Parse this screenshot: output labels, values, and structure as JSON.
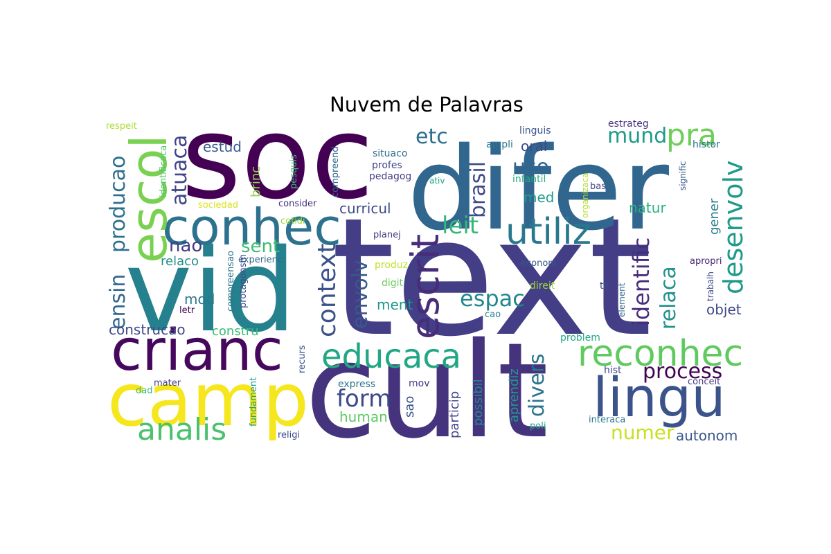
{
  "chart_data": {
    "type": "wordcloud",
    "title": "Nuvem de Palavras",
    "colormap": [
      "#440154",
      "#482777",
      "#3f4a8a",
      "#31678e",
      "#26838f",
      "#1f9d8a",
      "#6cce5a",
      "#b6de2b",
      "#fee825"
    ],
    "words": [
      {
        "text": "text",
        "weight": 100,
        "color": "#433e85",
        "orientation": "horizontal"
      },
      {
        "text": "cult",
        "weight": 83,
        "color": "#46337e",
        "orientation": "horizontal"
      },
      {
        "text": "difer",
        "weight": 74,
        "color": "#31678e",
        "orientation": "horizontal"
      },
      {
        "text": "soc",
        "weight": 72,
        "color": "#440154",
        "orientation": "horizontal"
      },
      {
        "text": "vid",
        "weight": 69,
        "color": "#26818e",
        "orientation": "horizontal"
      },
      {
        "text": "camp",
        "weight": 53,
        "color": "#f5e61e",
        "orientation": "horizontal"
      },
      {
        "text": "crianc",
        "weight": 41,
        "color": "#46085c",
        "orientation": "horizontal"
      },
      {
        "text": "lingu",
        "weight": 40,
        "color": "#3b528b",
        "orientation": "horizontal"
      },
      {
        "text": "conhec",
        "weight": 35,
        "color": "#2c728e",
        "orientation": "horizontal"
      },
      {
        "text": "escol",
        "weight": 35,
        "color": "#7ad151",
        "orientation": "vertical"
      },
      {
        "text": "utiliz",
        "weight": 28,
        "color": "#2a788e",
        "orientation": "horizontal"
      },
      {
        "text": "reconhec",
        "weight": 28,
        "color": "#60ca60",
        "orientation": "horizontal"
      },
      {
        "text": "escrit",
        "weight": 28,
        "color": "#472c7a",
        "orientation": "vertical"
      },
      {
        "text": "educaca",
        "weight": 24,
        "color": "#22a785",
        "orientation": "horizontal"
      },
      {
        "text": "analis",
        "weight": 24,
        "color": "#4ac16d",
        "orientation": "horizontal"
      },
      {
        "text": "pra",
        "weight": 24,
        "color": "#6ece58",
        "orientation": "horizontal"
      },
      {
        "text": "desenvolv",
        "weight": 19,
        "color": "#1f9a8a",
        "orientation": "vertical"
      },
      {
        "text": "context",
        "weight": 19,
        "color": "#3b528b",
        "orientation": "vertical"
      },
      {
        "text": "form",
        "weight": 18,
        "color": "#3e4989",
        "orientation": "horizontal"
      },
      {
        "text": "leit",
        "weight": 18,
        "color": "#35b779",
        "orientation": "horizontal"
      },
      {
        "text": "process",
        "weight": 18,
        "color": "#440154",
        "orientation": "horizontal"
      },
      {
        "text": "espac",
        "weight": 18,
        "color": "#23888e",
        "orientation": "horizontal"
      },
      {
        "text": "relaca",
        "weight": 18,
        "color": "#21918c",
        "orientation": "vertical"
      },
      {
        "text": "identific",
        "weight": 18,
        "color": "#472d7b",
        "orientation": "vertical"
      },
      {
        "text": "ensin",
        "weight": 18,
        "color": "#31688e",
        "orientation": "vertical"
      },
      {
        "text": "producao",
        "weight": 18,
        "color": "#2d708e",
        "orientation": "vertical"
      },
      {
        "text": "atuaca",
        "weight": 18,
        "color": "#414487",
        "orientation": "vertical"
      },
      {
        "text": "envolv",
        "weight": 17,
        "color": "#38598c",
        "orientation": "vertical"
      },
      {
        "text": "brasil",
        "weight": 17,
        "color": "#3e4a89",
        "orientation": "vertical"
      },
      {
        "text": "divers",
        "weight": 17,
        "color": "#2c738e",
        "orientation": "vertical"
      },
      {
        "text": "mund",
        "weight": 17,
        "color": "#1e9b8a",
        "orientation": "horizontal"
      },
      {
        "text": "etc",
        "weight": 17,
        "color": "#2d708e",
        "orientation": "horizontal"
      },
      {
        "text": "uso",
        "weight": 17,
        "color": "#31668e",
        "orientation": "horizontal"
      },
      {
        "text": "numer",
        "weight": 15,
        "color": "#c8e020",
        "orientation": "horizontal"
      },
      {
        "text": "sent",
        "weight": 15,
        "color": "#3fbc73",
        "orientation": "horizontal"
      },
      {
        "text": "nao",
        "weight": 15,
        "color": "#433e85",
        "orientation": "horizontal"
      },
      {
        "text": "construcao",
        "weight": 12,
        "color": "#3e4989",
        "orientation": "horizontal"
      },
      {
        "text": "curricul",
        "weight": 12,
        "color": "#3e4a89",
        "orientation": "horizontal"
      },
      {
        "text": "autonom",
        "weight": 12,
        "color": "#39568c",
        "orientation": "horizontal"
      },
      {
        "text": "ment",
        "weight": 12,
        "color": "#1f968b",
        "orientation": "horizontal"
      },
      {
        "text": "objet",
        "weight": 12,
        "color": "#404688",
        "orientation": "horizontal"
      },
      {
        "text": "human",
        "weight": 12,
        "color": "#5ec962",
        "orientation": "horizontal"
      },
      {
        "text": "estud",
        "weight": 12,
        "color": "#39568c",
        "orientation": "horizontal"
      },
      {
        "text": "natur",
        "weight": 12,
        "color": "#29af7f",
        "orientation": "horizontal"
      },
      {
        "text": "med",
        "weight": 12,
        "color": "#1f9e89",
        "orientation": "horizontal"
      },
      {
        "text": "oral",
        "weight": 12,
        "color": "#3e4a89",
        "orientation": "horizontal"
      },
      {
        "text": "mod",
        "weight": 11,
        "color": "#2a788e",
        "orientation": "horizontal"
      },
      {
        "text": "relaco",
        "weight": 11,
        "color": "#218f8d",
        "orientation": "horizontal"
      },
      {
        "text": "constru",
        "weight": 11,
        "color": "#3aba76",
        "orientation": "horizontal"
      },
      {
        "text": "brinc",
        "weight": 11,
        "color": "#8fd744",
        "orientation": "vertical"
      },
      {
        "text": "sao",
        "weight": 11,
        "color": "#3b528b",
        "orientation": "vertical"
      },
      {
        "text": "particip",
        "weight": 11,
        "color": "#414487",
        "orientation": "vertical"
      },
      {
        "text": "possibil",
        "weight": 11,
        "color": "#23898e",
        "orientation": "vertical"
      },
      {
        "text": "aprendiz",
        "weight": 11,
        "color": "#1f9a8a",
        "orientation": "vertical"
      },
      {
        "text": "gener",
        "weight": 11,
        "color": "#287c8e",
        "orientation": "vertical"
      },
      {
        "text": "linguis",
        "weight": 9,
        "color": "#3b528b",
        "orientation": "horizontal"
      },
      {
        "text": "estrateg",
        "weight": 9,
        "color": "#46327e",
        "orientation": "horizontal"
      },
      {
        "text": "histor",
        "weight": 9,
        "color": "#2c728e",
        "orientation": "horizontal"
      },
      {
        "text": "ampli",
        "weight": 9,
        "color": "#2a778e",
        "orientation": "horizontal"
      },
      {
        "text": "respeit",
        "weight": 8,
        "color": "#addc30",
        "orientation": "horizontal"
      },
      {
        "text": "identificaca",
        "weight": 8,
        "color": "#50c46a",
        "orientation": "vertical"
      },
      {
        "text": "pesquis",
        "weight": 8,
        "color": "#3dbc74",
        "orientation": "vertical"
      },
      {
        "text": "compreend",
        "weight": 8,
        "color": "#31688e",
        "orientation": "vertical"
      },
      {
        "text": "situaco",
        "weight": 8,
        "color": "#2d708e",
        "orientation": "horizontal"
      },
      {
        "text": "profes",
        "weight": 8,
        "color": "#3f4889",
        "orientation": "horizontal"
      },
      {
        "text": "pedagog",
        "weight": 8,
        "color": "#433e85",
        "orientation": "horizontal"
      },
      {
        "text": "infantil",
        "weight": 8,
        "color": "#26ad81",
        "orientation": "horizontal"
      },
      {
        "text": "ativ",
        "weight": 8,
        "color": "#1fa088",
        "orientation": "horizontal"
      },
      {
        "text": "bas",
        "weight": 8,
        "color": "#404588",
        "orientation": "horizontal"
      },
      {
        "text": "organizaca",
        "weight": 8,
        "color": "#b2dd2d",
        "orientation": "vertical"
      },
      {
        "text": "signific",
        "weight": 8,
        "color": "#375a8c",
        "orientation": "vertical"
      },
      {
        "text": "sociedad",
        "weight": 8,
        "color": "#d8e219",
        "orientation": "horizontal"
      },
      {
        "text": "consider",
        "weight": 8,
        "color": "#46307e",
        "orientation": "horizontal"
      },
      {
        "text": "cotidi",
        "weight": 8,
        "color": "#9dd93b",
        "orientation": "horizontal"
      },
      {
        "text": "planej",
        "weight": 8,
        "color": "#443a83",
        "orientation": "horizontal"
      },
      {
        "text": "experienc",
        "weight": 8,
        "color": "#31688e",
        "orientation": "horizontal"
      },
      {
        "text": "compreensao",
        "weight": 8,
        "color": "#2c738e",
        "orientation": "vertical"
      },
      {
        "text": "protagonsm",
        "weight": 8,
        "color": "#3e4989",
        "orientation": "vertical"
      },
      {
        "text": "produz",
        "weight": 8,
        "color": "#c0df25",
        "orientation": "horizontal"
      },
      {
        "text": "econom",
        "weight": 8,
        "color": "#39568c",
        "orientation": "horizontal"
      },
      {
        "text": "apropri",
        "weight": 8,
        "color": "#482575",
        "orientation": "horizontal"
      },
      {
        "text": "digit",
        "weight": 8,
        "color": "#6ccd5a",
        "orientation": "horizontal"
      },
      {
        "text": "direit",
        "weight": 8,
        "color": "#a2da37",
        "orientation": "horizontal"
      },
      {
        "text": "te",
        "weight": 8,
        "color": "#3e4989",
        "orientation": "horizontal"
      },
      {
        "text": "element",
        "weight": 8,
        "color": "#31688e",
        "orientation": "vertical"
      },
      {
        "text": "trabalh",
        "weight": 8,
        "color": "#3e4989",
        "orientation": "vertical"
      },
      {
        "text": "letr",
        "weight": 8,
        "color": "#440154",
        "orientation": "horizontal"
      },
      {
        "text": "cao",
        "weight": 8,
        "color": "#26828e",
        "orientation": "horizontal"
      },
      {
        "text": "recurs",
        "weight": 8,
        "color": "#3b528b",
        "orientation": "vertical"
      },
      {
        "text": "problem",
        "weight": 8,
        "color": "#22a884",
        "orientation": "horizontal"
      },
      {
        "text": "hist",
        "weight": 8,
        "color": "#3e4989",
        "orientation": "horizontal"
      },
      {
        "text": "fundament",
        "weight": 8,
        "color": "#1f9e89",
        "orientation": "vertical"
      },
      {
        "text": "mater",
        "weight": 8,
        "color": "#424186",
        "orientation": "horizontal"
      },
      {
        "text": "dad",
        "weight": 8,
        "color": "#35b779",
        "orientation": "horizontal"
      },
      {
        "text": "express",
        "weight": 8,
        "color": "#2c728e",
        "orientation": "horizontal"
      },
      {
        "text": "mov",
        "weight": 8,
        "color": "#46327e",
        "orientation": "horizontal"
      },
      {
        "text": "conceit",
        "weight": 8,
        "color": "#443a83",
        "orientation": "horizontal"
      },
      {
        "text": "interaca",
        "weight": 8,
        "color": "#2a778e",
        "orientation": "horizontal"
      },
      {
        "text": "poli",
        "weight": 8,
        "color": "#22a785",
        "orientation": "horizontal"
      },
      {
        "text": "religi",
        "weight": 8,
        "color": "#3e4989",
        "orientation": "horizontal"
      }
    ]
  }
}
